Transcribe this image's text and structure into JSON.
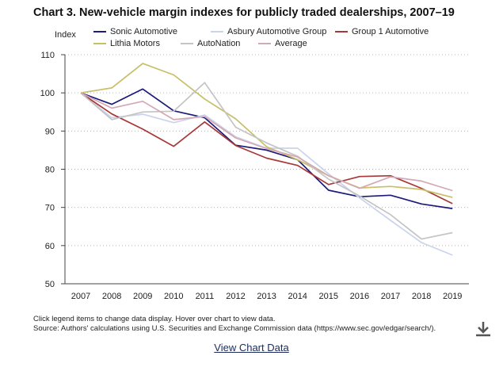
{
  "title": "Chart 3. New-vehicle margin indexes for publicly traded dealerships, 2007–19",
  "notes": [
    "Click legend items to change data display. Hover over chart to view data.",
    "Source: Authors' calculations using U.S. Securities and Exchange Commission data (https://www.sec.gov/edgar/search/)."
  ],
  "view_data_link": "View Chart Data",
  "download_icon": "download-icon",
  "chart_data": {
    "type": "line",
    "title": "Chart 3. New-vehicle margin indexes for publicly traded dealerships, 2007–19",
    "xlabel": "",
    "ylabel": "Index",
    "x": [
      "2007",
      "2008",
      "2009",
      "2010",
      "2011",
      "2012",
      "2013",
      "2014",
      "2015",
      "2016",
      "2017",
      "2018",
      "2019"
    ],
    "ylim": [
      50,
      110
    ],
    "yticks": [
      50,
      60,
      70,
      80,
      90,
      100,
      110
    ],
    "grid": "horizontal dotted",
    "legend_position": "top",
    "series": [
      {
        "name": "Sonic Automotive",
        "color": "#1c1a7a",
        "values": [
          100,
          97,
          101,
          95.3,
          93.5,
          86.3,
          85,
          82.5,
          74.5,
          72.8,
          73.2,
          70.9,
          69.7
        ]
      },
      {
        "name": "Asbury Automotive Group",
        "color": "#c9d4ec",
        "values": [
          100,
          93.5,
          94.4,
          92.2,
          94.2,
          88.5,
          85.5,
          85.5,
          78.8,
          72.5,
          66.6,
          60.8,
          57.5
        ]
      },
      {
        "name": "Group 1 Automotive",
        "color": "#a83838",
        "values": [
          100,
          94.5,
          90.5,
          86,
          92.4,
          86.2,
          82.9,
          81,
          76,
          78.1,
          78.3,
          75,
          71
        ]
      },
      {
        "name": "Lithia Motors",
        "color": "#c8bf68",
        "values": [
          100,
          101.3,
          107.7,
          104.7,
          98.4,
          93.2,
          85.9,
          82.5,
          78.3,
          75.1,
          75.5,
          74.7,
          72.6
        ]
      },
      {
        "name": "AutoNation",
        "color": "#c4c4c4",
        "values": [
          100,
          93,
          95,
          95.2,
          102.7,
          91,
          86.9,
          83.4,
          77.4,
          73,
          68.1,
          61.7,
          63.4
        ]
      },
      {
        "name": "Average",
        "color": "#d4a8b4",
        "values": [
          100,
          96,
          97.8,
          93,
          93.8,
          88.2,
          85.4,
          83.2,
          78.3,
          75,
          78,
          76.9,
          74.4
        ]
      }
    ]
  }
}
